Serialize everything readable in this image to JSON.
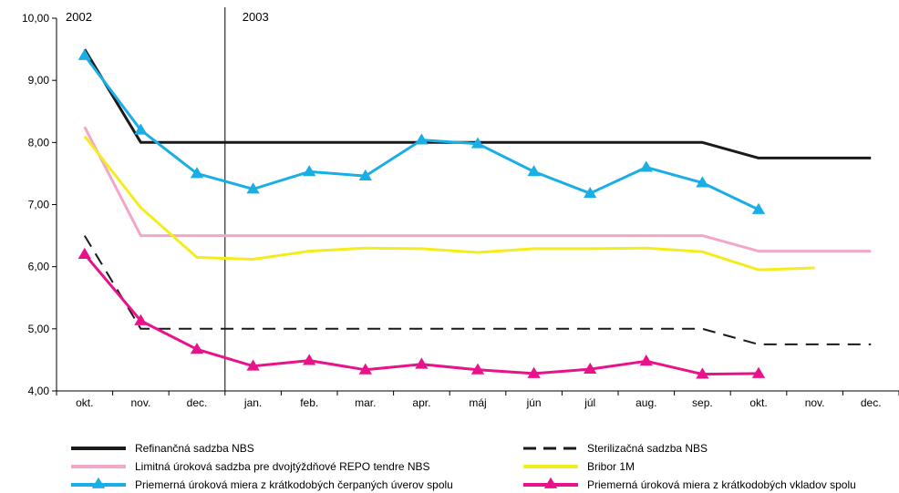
{
  "chart_data": {
    "type": "line",
    "year_labels": [
      "2002",
      "2003"
    ],
    "categories": [
      "okt.",
      "nov.",
      "dec.",
      "jan.",
      "feb.",
      "mar.",
      "apr.",
      "máj",
      "jún",
      "júl",
      "aug.",
      "sep.",
      "okt.",
      "nov.",
      "dec."
    ],
    "ylim": [
      4,
      10
    ],
    "yticks": [
      "4,00",
      "5,00",
      "6,00",
      "7,00",
      "8,00",
      "9,00",
      "10,00"
    ],
    "year_divider_after_index": 2,
    "legend_position": "bottom",
    "series": [
      {
        "name": "Refinančná sadzba NBS",
        "color": "#1a1a1a",
        "dash": "solid",
        "marker": "none",
        "values": [
          9.5,
          8.0,
          8.0,
          8.0,
          8.0,
          8.0,
          8.0,
          8.0,
          8.0,
          8.0,
          8.0,
          8.0,
          7.75,
          7.75,
          7.75
        ]
      },
      {
        "name": "Sterilizačná sadzba NBS",
        "color": "#1a1a1a",
        "dash": "dashed",
        "marker": "none",
        "values": [
          6.5,
          5.0,
          5.0,
          5.0,
          5.0,
          5.0,
          5.0,
          5.0,
          5.0,
          5.0,
          5.0,
          5.0,
          4.75,
          4.75,
          4.75
        ]
      },
      {
        "name": "Limitná úroková sadzba pre dvojtýždňové REPO tendre NBS",
        "color": "#f2a6c8",
        "dash": "solid",
        "marker": "none",
        "values": [
          8.25,
          6.5,
          6.5,
          6.5,
          6.5,
          6.5,
          6.5,
          6.5,
          6.5,
          6.5,
          6.5,
          6.5,
          6.25,
          6.25,
          6.25
        ]
      },
      {
        "name": "Bribor 1M",
        "color": "#f5ec1e",
        "dash": "solid",
        "marker": "none",
        "values": [
          8.1,
          6.95,
          6.15,
          6.12,
          6.25,
          6.3,
          6.29,
          6.23,
          6.29,
          6.29,
          6.3,
          6.24,
          5.95,
          5.98,
          null
        ]
      },
      {
        "name": "Priemerná úroková miera z krátkodobých čerpaných úverov spolu",
        "color": "#1aaee6",
        "dash": "solid",
        "marker": "triangle",
        "values": [
          9.4,
          8.2,
          7.5,
          7.25,
          7.53,
          7.46,
          8.04,
          7.98,
          7.53,
          7.18,
          7.6,
          7.35,
          6.92,
          null,
          null
        ]
      },
      {
        "name": "Priemerná úroková miera z krátkodobých vkladov spolu",
        "color": "#e8138a",
        "dash": "solid",
        "marker": "triangle",
        "values": [
          6.2,
          5.13,
          4.67,
          4.4,
          4.49,
          4.34,
          4.43,
          4.34,
          4.28,
          4.35,
          4.48,
          4.27,
          4.28,
          null,
          null
        ]
      }
    ]
  }
}
